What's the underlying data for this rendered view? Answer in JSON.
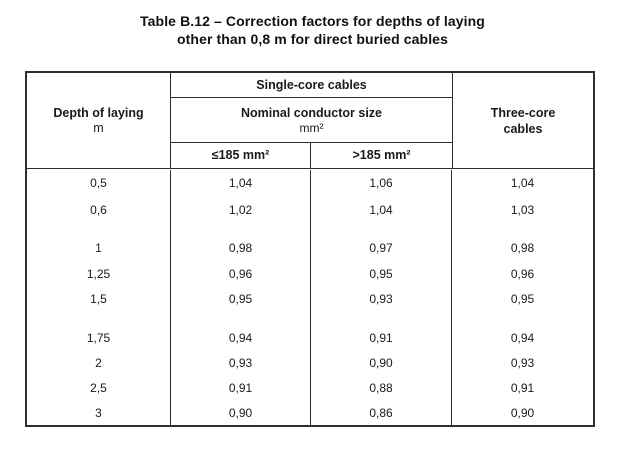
{
  "colors": {
    "background": "#ffffff",
    "text": "#1a1a1a",
    "border": "#2e2e2e"
  },
  "title": {
    "line1": "Table B.12 – Correction factors for depths of laying",
    "line2": "other than 0,8 m for direct buried cables"
  },
  "table": {
    "header": {
      "depth": "Depth of laying",
      "depth_unit": "m",
      "single_core": "Single-core cables",
      "nominal": "Nominal conductor size",
      "nominal_unit": "mm²",
      "size_le": "≤185 mm²",
      "size_gt": ">185 mm²",
      "three_core_line1": "Three-core",
      "three_core_line2": "cables"
    },
    "rows": [
      {
        "depth": "0,5",
        "le185": "1,04",
        "gt185": "1,06",
        "three_core": "1,04"
      },
      {
        "depth": "0,6",
        "le185": "1,02",
        "gt185": "1,04",
        "three_core": "1,03"
      },
      {
        "depth": "1",
        "le185": "0,98",
        "gt185": "0,97",
        "three_core": "0,98"
      },
      {
        "depth": "1,25",
        "le185": "0,96",
        "gt185": "0,95",
        "three_core": "0,96"
      },
      {
        "depth": "1,5",
        "le185": "0,95",
        "gt185": "0,93",
        "three_core": "0,95"
      },
      {
        "depth": "1,75",
        "le185": "0,94",
        "gt185": "0,91",
        "three_core": "0,94"
      },
      {
        "depth": "2",
        "le185": "0,93",
        "gt185": "0,90",
        "three_core": "0,93"
      },
      {
        "depth": "2,5",
        "le185": "0,91",
        "gt185": "0,88",
        "three_core": "0,91"
      },
      {
        "depth": "3",
        "le185": "0,90",
        "gt185": "0,86",
        "three_core": "0,90"
      }
    ]
  }
}
